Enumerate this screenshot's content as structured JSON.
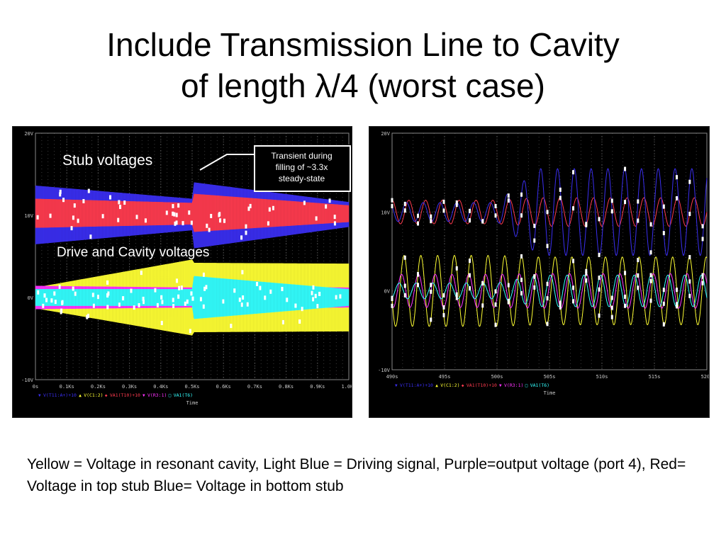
{
  "slide": {
    "title_line1": "Include Transmission Line to Cavity",
    "title_line2": "of length λ/4 (worst case)",
    "caption": "Yellow = Voltage in resonant cavity, Light Blue = Driving signal, Purple=output voltage (port 4), Red= Voltage in top stub Blue= Voltage in bottom stub"
  },
  "annotations": {
    "stub_voltages": "Stub voltages",
    "drive_cavity": "Drive and Cavity voltages",
    "callout_line1": "Transient during",
    "callout_line2": "filling of ~3.3x",
    "callout_line3": "steady-state"
  },
  "colors": {
    "background": "#000000",
    "grid": "#666666",
    "blue": "#3a2ef0",
    "red": "#ff3b4f",
    "yellow": "#ffff33",
    "cyan": "#33ffff",
    "magenta": "#ff33ff",
    "axis_text": "#c8c8c8"
  },
  "chart_data": [
    {
      "type": "line",
      "y_ticks": [
        "20V",
        "10V",
        "0V",
        "-10V"
      ],
      "ylim": [
        -10,
        20
      ],
      "x_ticks": [
        "0s",
        "0.1Ks",
        "0.2Ks",
        "0.3Ks",
        "0.4Ks",
        "0.5Ks",
        "0.6Ks",
        "0.7Ks",
        "0.8Ks",
        "0.9Ks",
        "1.0Ks"
      ],
      "xlim": [
        0,
        1000
      ],
      "xlabel": "Time",
      "legend": [
        "V(T11:A+)+10",
        "V(C1:2)",
        "VA1(T10)+10",
        "V(R3:1)",
        "VA1(T6)"
      ],
      "envelopes": [
        {
          "color": "blue",
          "x": [
            0,
            500,
            505,
            1000
          ],
          "upper": [
            13.6,
            12.0,
            14.0,
            11.6
          ],
          "lower": [
            6.5,
            8.2,
            6.0,
            8.6
          ]
        },
        {
          "color": "red",
          "x": [
            0,
            500,
            505,
            1000
          ],
          "upper": [
            12.0,
            11.5,
            12.6,
            11.2
          ],
          "lower": [
            8.5,
            8.9,
            8.0,
            9.2
          ]
        },
        {
          "color": "yellow",
          "x": [
            0,
            500,
            505,
            1000
          ],
          "upper": [
            1.2,
            4.6,
            4.2,
            4.1
          ],
          "lower": [
            -1.3,
            -4.6,
            -4.2,
            -4.1
          ]
        },
        {
          "color": "magenta",
          "x": [
            0,
            500,
            505,
            1000
          ],
          "upper": [
            1.4,
            1.2,
            1.3,
            1.2
          ],
          "lower": [
            -1.4,
            -1.2,
            -1.3,
            -1.2
          ]
        },
        {
          "color": "cyan",
          "x": [
            0,
            500,
            505,
            1000
          ],
          "upper": [
            1.0,
            1.0,
            2.6,
            1.0
          ],
          "lower": [
            -1.0,
            -1.0,
            -2.6,
            -1.0
          ]
        }
      ]
    },
    {
      "type": "line",
      "y_ticks": [
        "20V",
        "10V",
        "0V",
        "-10V"
      ],
      "ylim": [
        -10,
        20
      ],
      "x_ticks": [
        "490s",
        "495s",
        "500s",
        "505s",
        "510s",
        "515s",
        "520s"
      ],
      "xlim": [
        490,
        520
      ],
      "xlabel": "Time",
      "legend": [
        "V(T11:A+)+10",
        "V(C1:2)",
        "VA1(T10)+10",
        "V(R3:1)",
        "VA1(T6)"
      ],
      "waves": [
        {
          "color": "red",
          "center": 10,
          "amp_before": 1.5,
          "amp_after": 1.8,
          "period": 1.6
        },
        {
          "color": "blue",
          "center": 10,
          "amp_before": 1.2,
          "amp_after": 5.5,
          "period": 1.6
        },
        {
          "color": "yellow",
          "center": 0,
          "amp_before": 4.5,
          "amp_after": 4.3,
          "period": 1.6
        },
        {
          "color": "magenta",
          "center": 0,
          "amp_before": 2.1,
          "amp_after": 2.2,
          "period": 1.6
        },
        {
          "color": "cyan",
          "center": 0,
          "amp_before": 1.0,
          "amp_after": 2.0,
          "period": 1.6
        }
      ],
      "transition_at": 500
    }
  ]
}
